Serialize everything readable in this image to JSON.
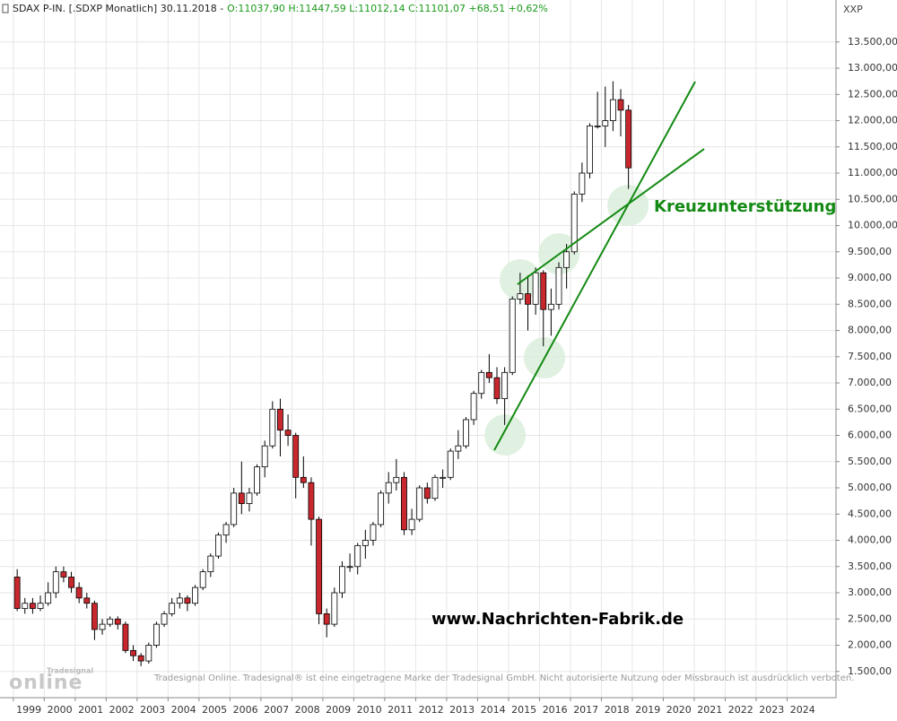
{
  "chart_data": {
    "type": "candlestick",
    "title": "SDAX P-IN. [.SDXP  Monatlich] 30.11.2018 -",
    "subtitle": "O:11037,90 H:11447,59 L:11012,14 C:11101,07 +68,51 +0,62%",
    "y_axis_label": "XXP",
    "annotation": "Kreuzunterstützung",
    "website": "www.Nachrichten-Fabrik.de",
    "disclaimer": "Tradesignal Online. Tradesignal® ist eine eingetragene Marke der Tradesignal GmbH. Nicht autorisierte Nutzung oder Missbrauch ist ausdrücklich verboten.",
    "logo_small": "Tradesignal",
    "logo_big": "online",
    "up_color": "#ffffff",
    "down_color": "#c8282d",
    "trendline_color": "#138a13",
    "highlight_color": "#dceedc",
    "grid": true,
    "xlim": [
      1998.57,
      2025.58
    ],
    "ylim": [
      1000,
      14300
    ],
    "xticks": [
      1999,
      2000,
      2001,
      2002,
      2003,
      2004,
      2005,
      2006,
      2007,
      2008,
      2009,
      2010,
      2011,
      2012,
      2013,
      2014,
      2015,
      2016,
      2017,
      2018,
      2019,
      2020,
      2021,
      2022,
      2023,
      2024
    ],
    "yticks": [
      {
        "value": 1500,
        "label": "1.500,00"
      },
      {
        "value": 2000,
        "label": "2.000,00"
      },
      {
        "value": 2500,
        "label": "2.500,00"
      },
      {
        "value": 3000,
        "label": "3.000,00"
      },
      {
        "value": 3500,
        "label": "3.500,00"
      },
      {
        "value": 4000,
        "label": "4.000,00"
      },
      {
        "value": 4500,
        "label": "4.500,00"
      },
      {
        "value": 5000,
        "label": "5.000,00"
      },
      {
        "value": 5500,
        "label": "5.500,00"
      },
      {
        "value": 6000,
        "label": "6.000,00"
      },
      {
        "value": 6500,
        "label": "6.500,00"
      },
      {
        "value": 7000,
        "label": "7.000,00"
      },
      {
        "value": 7500,
        "label": "7.500,00"
      },
      {
        "value": 8000,
        "label": "8.000,00"
      },
      {
        "value": 8500,
        "label": "8.500,00"
      },
      {
        "value": 9000,
        "label": "9.000,00"
      },
      {
        "value": 9500,
        "label": "9.500,00"
      },
      {
        "value": 10000,
        "label": "10.000,00"
      },
      {
        "value": 10500,
        "label": "10.500,00"
      },
      {
        "value": 11000,
        "label": "11.000,00"
      },
      {
        "value": 11500,
        "label": "11.500,00"
      },
      {
        "value": 12000,
        "label": "12.000,00"
      },
      {
        "value": 12500,
        "label": "12.500,00"
      },
      {
        "value": 13000,
        "label": "13.000,00"
      },
      {
        "value": 13500,
        "label": "13.500,00"
      }
    ],
    "x": [
      1999.125,
      1999.375,
      1999.625,
      1999.875,
      2000.125,
      2000.375,
      2000.625,
      2000.875,
      2001.125,
      2001.375,
      2001.625,
      2001.875,
      2002.125,
      2002.375,
      2002.625,
      2002.875,
      2003.125,
      2003.375,
      2003.625,
      2003.875,
      2004.125,
      2004.375,
      2004.625,
      2004.875,
      2005.125,
      2005.375,
      2005.625,
      2005.875,
      2006.125,
      2006.375,
      2006.625,
      2006.875,
      2007.125,
      2007.375,
      2007.625,
      2007.875,
      2008.125,
      2008.375,
      2008.625,
      2008.875,
      2009.125,
      2009.375,
      2009.625,
      2009.875,
      2010.125,
      2010.375,
      2010.625,
      2010.875,
      2011.125,
      2011.375,
      2011.625,
      2011.875,
      2012.125,
      2012.375,
      2012.625,
      2012.875,
      2013.125,
      2013.375,
      2013.625,
      2013.875,
      2014.125,
      2014.375,
      2014.625,
      2014.875,
      2015.125,
      2015.375,
      2015.625,
      2015.875,
      2016.125,
      2016.375,
      2016.625,
      2016.875,
      2017.125,
      2017.375,
      2017.625,
      2017.875,
      2018.125,
      2018.375,
      2018.625,
      2018.875
    ],
    "open": [
      3300,
      2700,
      2800,
      2700,
      2800,
      3000,
      3400,
      3300,
      3100,
      2900,
      2800,
      2300,
      2400,
      2500,
      2400,
      1900,
      1800,
      1700,
      2000,
      2400,
      2600,
      2800,
      2900,
      2800,
      3100,
      3400,
      3700,
      4100,
      4300,
      4900,
      4700,
      4900,
      5400,
      5800,
      6500,
      6100,
      6000,
      5200,
      5100,
      4400,
      2600,
      2400,
      3000,
      3500,
      3500,
      3900,
      4000,
      4300,
      4900,
      5100,
      5200,
      4200,
      4400,
      5000,
      4800,
      5200,
      5200,
      5700,
      5800,
      6300,
      6800,
      7200,
      7100,
      6700,
      7200,
      8600,
      8700,
      8500,
      9100,
      8400,
      8500,
      9200,
      9500,
      10600,
      11000,
      11900,
      11900,
      12000,
      12400,
      12200
    ],
    "high": [
      3450,
      2900,
      2900,
      2950,
      3200,
      3500,
      3500,
      3400,
      3200,
      3000,
      2850,
      2500,
      2550,
      2550,
      2450,
      2000,
      1850,
      2050,
      2450,
      2650,
      2900,
      3000,
      2950,
      3150,
      3450,
      3750,
      4150,
      4350,
      5000,
      5500,
      5000,
      5450,
      5900,
      6650,
      6700,
      6400,
      6050,
      5600,
      5200,
      4450,
      2700,
      3100,
      3600,
      3750,
      3950,
      4200,
      4350,
      4950,
      5300,
      5550,
      5300,
      4600,
      5050,
      5100,
      5250,
      5350,
      5750,
      6100,
      6350,
      6850,
      7250,
      7550,
      7300,
      7300,
      8650,
      9100,
      9050,
      9200,
      9150,
      8800,
      9300,
      9650,
      10650,
      11200,
      11950,
      12550,
      12650,
      12750,
      12600,
      12300
    ],
    "low": [
      2650,
      2600,
      2600,
      2650,
      2750,
      2900,
      3200,
      3000,
      2800,
      2700,
      2100,
      2200,
      2350,
      2300,
      1850,
      1700,
      1600,
      1650,
      1950,
      2350,
      2550,
      2700,
      2650,
      2750,
      3050,
      3300,
      3650,
      3950,
      4250,
      4500,
      4550,
      4850,
      5200,
      5750,
      5600,
      5800,
      4800,
      5000,
      3900,
      2400,
      2150,
      2350,
      2900,
      3400,
      3350,
      3650,
      3900,
      4250,
      4700,
      4950,
      4100,
      4100,
      4350,
      4700,
      4750,
      5000,
      5150,
      5550,
      5750,
      6200,
      6700,
      7000,
      6600,
      6200,
      7150,
      8500,
      8000,
      8300,
      7700,
      7900,
      8400,
      8800,
      9450,
      10450,
      10900,
      11850,
      11500,
      11800,
      11700,
      10700
    ],
    "close": [
      2700,
      2800,
      2700,
      2800,
      3000,
      3400,
      3300,
      3100,
      2900,
      2800,
      2300,
      2400,
      2500,
      2400,
      1900,
      1800,
      1700,
      2000,
      2400,
      2600,
      2800,
      2900,
      2800,
      3100,
      3400,
      3700,
      4100,
      4300,
      4900,
      4700,
      4900,
      5400,
      5800,
      6500,
      6100,
      6000,
      5200,
      5100,
      4400,
      2600,
      2400,
      3000,
      3500,
      3500,
      3900,
      4000,
      4300,
      4900,
      5100,
      5200,
      4200,
      4400,
      5000,
      4800,
      5200,
      5200,
      5700,
      5800,
      6300,
      6800,
      7200,
      7100,
      6700,
      7200,
      8600,
      8700,
      8500,
      9100,
      8400,
      8500,
      9200,
      9500,
      10600,
      11000,
      11900,
      11900,
      12000,
      12400,
      12200,
      11100
    ],
    "trendlines": [
      {
        "x": [
          2014.54,
          2021.03
        ],
        "y": [
          5718,
          12744
        ]
      },
      {
        "x": [
          2015.29,
          2021.32
        ],
        "y": [
          8880,
          11462
        ]
      }
    ],
    "highlights": {
      "x": [
        2014.89,
        2015.38,
        2016.63,
        2016.16,
        2018.86
      ],
      "y": [
        6009,
        8966,
        9462,
        7479,
        10385
      ]
    }
  }
}
